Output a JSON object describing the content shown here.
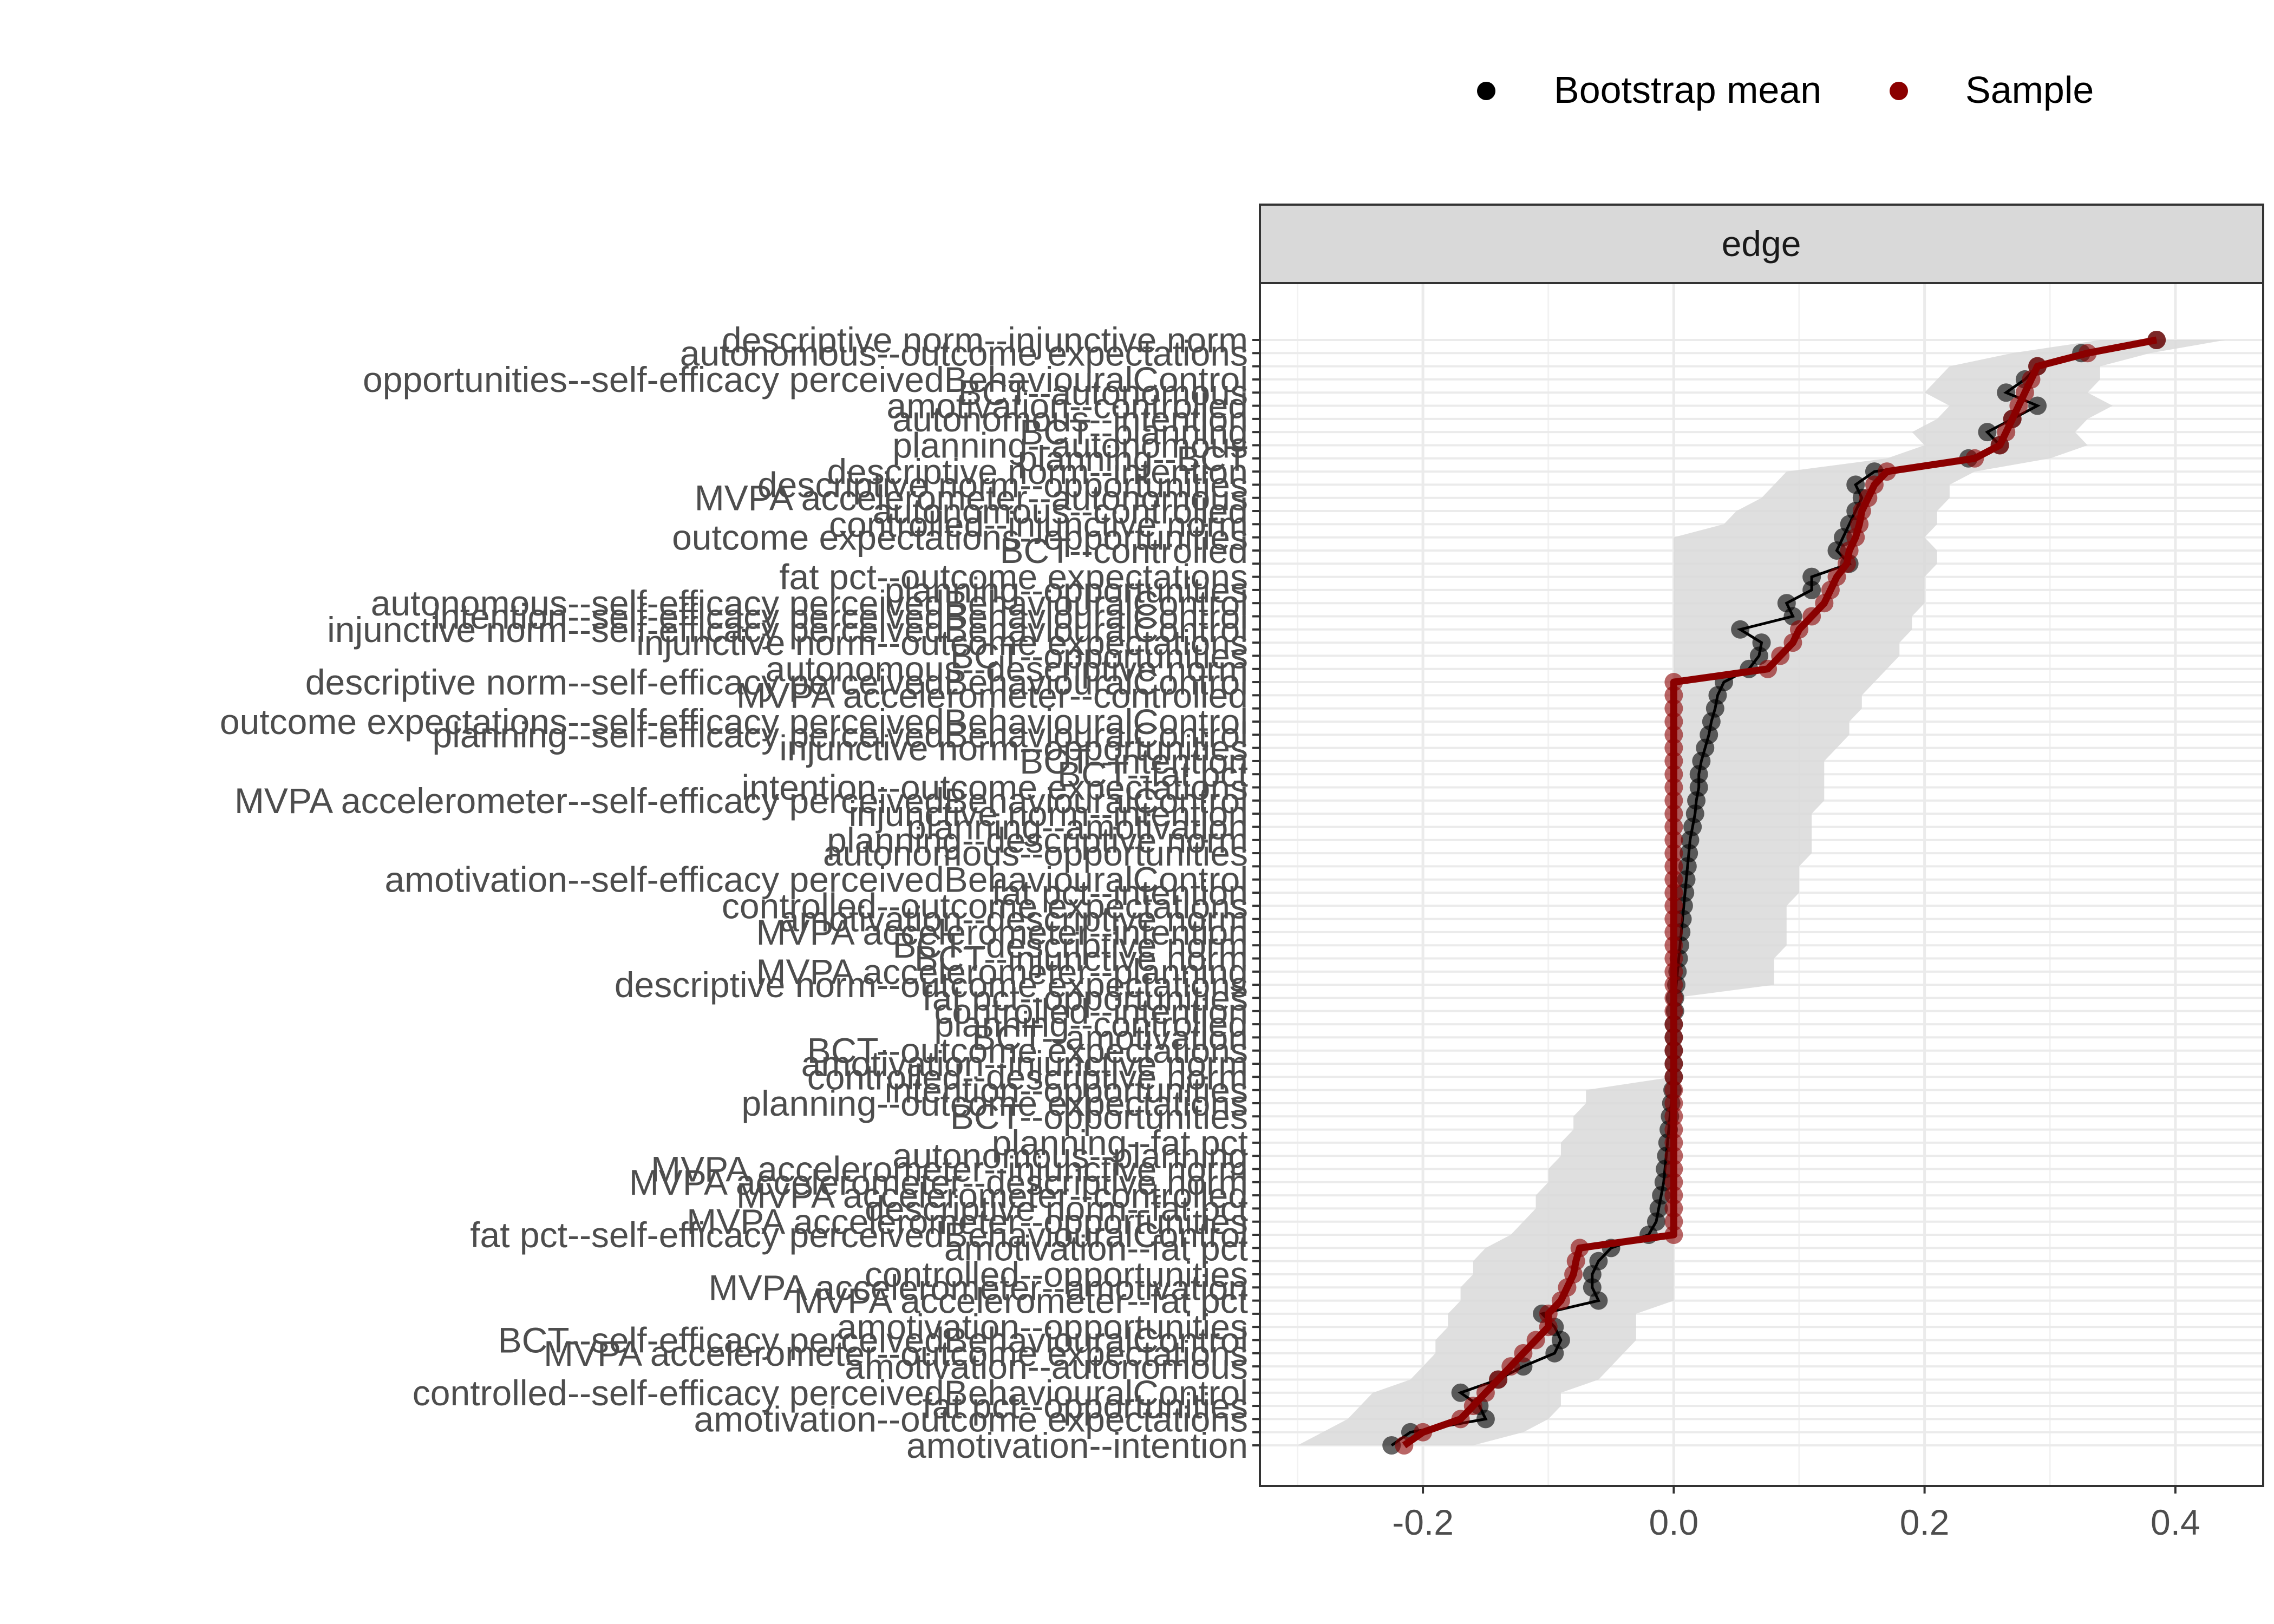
{
  "chart_data": {
    "type": "line",
    "facet_label": "edge",
    "xlim": [
      -0.33,
      0.47
    ],
    "x_ticks": [
      -0.2,
      0.0,
      0.2,
      0.4
    ],
    "x_tick_labels": [
      "-0.2",
      "0.0",
      "0.2",
      "0.4"
    ],
    "grid": true,
    "legend_position": "top-right",
    "legend": [
      {
        "label": "Bootstrap mean",
        "color": "#000000"
      },
      {
        "label": "Sample",
        "color": "#8b0000"
      }
    ],
    "colors": {
      "bootstrap": "#000000",
      "sample": "#8b0000",
      "ci_band": "#d9d9d9"
    },
    "edges": [
      {
        "label": "descriptive norm--injunctive norm",
        "sample": 0.385,
        "mean": 0.385,
        "lo": 0.34,
        "hi": 0.44
      },
      {
        "label": "autonomous--outcome expectations",
        "sample": 0.33,
        "mean": 0.325,
        "lo": 0.27,
        "hi": 0.38
      },
      {
        "label": "",
        "sample": 0.29,
        "mean": 0.29,
        "lo": 0.22,
        "hi": 0.34
      },
      {
        "label": "opportunities--self-efficacy perceivedBehaviouralControl",
        "sample": 0.285,
        "mean": 0.28,
        "lo": 0.21,
        "hi": 0.34
      },
      {
        "label": "BCT--autonomous",
        "sample": 0.28,
        "mean": 0.265,
        "lo": 0.2,
        "hi": 0.33
      },
      {
        "label": "amotivation--controlled",
        "sample": 0.275,
        "mean": 0.29,
        "lo": 0.22,
        "hi": 0.35
      },
      {
        "label": "autonomous--intention",
        "sample": 0.27,
        "mean": 0.27,
        "lo": 0.21,
        "hi": 0.33
      },
      {
        "label": "BCT--planning",
        "sample": 0.265,
        "mean": 0.25,
        "lo": 0.19,
        "hi": 0.32
      },
      {
        "label": "planning--autonomous",
        "sample": 0.26,
        "mean": 0.26,
        "lo": 0.2,
        "hi": 0.33
      },
      {
        "label": "planning--BCT",
        "sample": 0.24,
        "mean": 0.235,
        "lo": 0.17,
        "hi": 0.3
      },
      {
        "label": "descriptive norm--intention",
        "sample": 0.17,
        "mean": 0.16,
        "lo": 0.09,
        "hi": 0.24
      },
      {
        "label": "descriptive norm--opportunities",
        "sample": 0.16,
        "mean": 0.145,
        "lo": 0.08,
        "hi": 0.22
      },
      {
        "label": "MVPA accelerometer--autonomous",
        "sample": 0.155,
        "mean": 0.15,
        "lo": 0.07,
        "hi": 0.22
      },
      {
        "label": "autonomous--controlled",
        "sample": 0.15,
        "mean": 0.145,
        "lo": 0.05,
        "hi": 0.21
      },
      {
        "label": "controlled--injunctive norm",
        "sample": 0.148,
        "mean": 0.14,
        "lo": 0.04,
        "hi": 0.21
      },
      {
        "label": "outcome expectations--opportunities",
        "sample": 0.145,
        "mean": 0.135,
        "lo": 0.0,
        "hi": 0.2
      },
      {
        "label": "BCT--controlled",
        "sample": 0.14,
        "mean": 0.13,
        "lo": 0.0,
        "hi": 0.21
      },
      {
        "label": "",
        "sample": 0.138,
        "mean": 0.14,
        "lo": 0.0,
        "hi": 0.21
      },
      {
        "label": "fat pct--outcome expectations",
        "sample": 0.13,
        "mean": 0.11,
        "lo": 0.0,
        "hi": 0.2
      },
      {
        "label": "planning--opportunities",
        "sample": 0.125,
        "mean": 0.11,
        "lo": 0.0,
        "hi": 0.2
      },
      {
        "label": "autonomous--self-efficacy perceivedBehaviouralControl",
        "sample": 0.12,
        "mean": 0.09,
        "lo": 0.0,
        "hi": 0.2
      },
      {
        "label": "intention--self-efficacy perceivedBehaviouralControl",
        "sample": 0.11,
        "mean": 0.095,
        "lo": 0.0,
        "hi": 0.19
      },
      {
        "label": "injunctive norm--self-efficacy perceivedBehaviouralControl",
        "sample": 0.1,
        "mean": 0.053,
        "lo": 0.0,
        "hi": 0.19
      },
      {
        "label": "injunctive norm--outcome expectations",
        "sample": 0.095,
        "mean": 0.07,
        "lo": 0.0,
        "hi": 0.18
      },
      {
        "label": "BCT--opportunities",
        "sample": 0.085,
        "mean": 0.068,
        "lo": 0.0,
        "hi": 0.18
      },
      {
        "label": "autonomous--descriptive norm",
        "sample": 0.075,
        "mean": 0.06,
        "lo": 0.0,
        "hi": 0.17
      },
      {
        "label": "descriptive norm--self-efficacy perceivedBehaviouralControl",
        "sample": 0.0,
        "mean": 0.04,
        "lo": 0.0,
        "hi": 0.16
      },
      {
        "label": "MVPA accelerometer--controlled",
        "sample": 0.0,
        "mean": 0.035,
        "lo": 0.0,
        "hi": 0.15
      },
      {
        "label": "",
        "sample": 0.0,
        "mean": 0.033,
        "lo": 0.0,
        "hi": 0.15
      },
      {
        "label": "outcome expectations--self-efficacy perceivedBehaviouralControl",
        "sample": 0.0,
        "mean": 0.03,
        "lo": 0.0,
        "hi": 0.14
      },
      {
        "label": "planning--self-efficacy perceivedBehaviouralControl",
        "sample": 0.0,
        "mean": 0.028,
        "lo": 0.0,
        "hi": 0.14
      },
      {
        "label": "injunctive norm--opportunities",
        "sample": 0.0,
        "mean": 0.025,
        "lo": 0.0,
        "hi": 0.13
      },
      {
        "label": "BCT--intention",
        "sample": 0.0,
        "mean": 0.022,
        "lo": 0.0,
        "hi": 0.12
      },
      {
        "label": "BCT--fat pct",
        "sample": 0.0,
        "mean": 0.02,
        "lo": 0.0,
        "hi": 0.12
      },
      {
        "label": "intention--outcome expectations",
        "sample": 0.0,
        "mean": 0.02,
        "lo": 0.0,
        "hi": 0.12
      },
      {
        "label": "MVPA accelerometer--self-efficacy perceivedBehaviouralControl",
        "sample": 0.0,
        "mean": 0.018,
        "lo": 0.0,
        "hi": 0.12
      },
      {
        "label": "injunctive norm--intention",
        "sample": 0.0,
        "mean": 0.017,
        "lo": 0.0,
        "hi": 0.11
      },
      {
        "label": "planning--amotivation",
        "sample": 0.0,
        "mean": 0.015,
        "lo": 0.0,
        "hi": 0.11
      },
      {
        "label": "planning--descriptive norm",
        "sample": 0.0,
        "mean": 0.013,
        "lo": 0.0,
        "hi": 0.11
      },
      {
        "label": "autonomous--opportunities",
        "sample": 0.0,
        "mean": 0.012,
        "lo": 0.0,
        "hi": 0.11
      },
      {
        "label": "",
        "sample": 0.0,
        "mean": 0.011,
        "lo": 0.0,
        "hi": 0.1
      },
      {
        "label": "amotivation--self-efficacy perceivedBehaviouralControl",
        "sample": 0.0,
        "mean": 0.01,
        "lo": 0.0,
        "hi": 0.1
      },
      {
        "label": "fat pct--intention",
        "sample": 0.0,
        "mean": 0.009,
        "lo": 0.0,
        "hi": 0.1
      },
      {
        "label": "controlled--outcome expectations",
        "sample": 0.0,
        "mean": 0.008,
        "lo": 0.0,
        "hi": 0.09
      },
      {
        "label": "amotivation--descriptive norm",
        "sample": 0.0,
        "mean": 0.007,
        "lo": 0.0,
        "hi": 0.09
      },
      {
        "label": "MVPA accelerometer--intention",
        "sample": 0.0,
        "mean": 0.006,
        "lo": 0.0,
        "hi": 0.09
      },
      {
        "label": "BCT--descriptive norm",
        "sample": 0.0,
        "mean": 0.005,
        "lo": 0.0,
        "hi": 0.09
      },
      {
        "label": "BCT--injunctive norm",
        "sample": 0.0,
        "mean": 0.004,
        "lo": 0.0,
        "hi": 0.08
      },
      {
        "label": "MVPA accelerometer--planning",
        "sample": 0.0,
        "mean": 0.003,
        "lo": 0.0,
        "hi": 0.08
      },
      {
        "label": "descriptive norm--outcome expectations",
        "sample": 0.0,
        "mean": 0.002,
        "lo": 0.0,
        "hi": 0.08
      },
      {
        "label": "fat pct--opportunities",
        "sample": 0.0,
        "mean": 0.001,
        "lo": 0.0,
        "hi": 0.0
      },
      {
        "label": "controlled--intention",
        "sample": 0.0,
        "mean": 0.001,
        "lo": 0.0,
        "hi": 0.0
      },
      {
        "label": "planning--controlled",
        "sample": 0.0,
        "mean": 0.0,
        "lo": 0.0,
        "hi": 0.0
      },
      {
        "label": "BCT--amotivation",
        "sample": 0.0,
        "mean": 0.0,
        "lo": 0.0,
        "hi": 0.0
      },
      {
        "label": "BCT--outcome expectations",
        "sample": 0.0,
        "mean": 0.0,
        "lo": 0.0,
        "hi": 0.0
      },
      {
        "label": "amotivation--injunctive norm",
        "sample": 0.0,
        "mean": 0.0,
        "lo": 0.0,
        "hi": 0.0
      },
      {
        "label": "controlled--descriptive norm",
        "sample": 0.0,
        "mean": 0.0,
        "lo": 0.0,
        "hi": 0.0
      },
      {
        "label": "intention--opportunities",
        "sample": 0.0,
        "mean": -0.001,
        "lo": -0.07,
        "hi": 0.0
      },
      {
        "label": "planning--outcome expectations",
        "sample": 0.0,
        "mean": -0.002,
        "lo": -0.07,
        "hi": 0.0
      },
      {
        "label": "BCT--opportunities",
        "sample": 0.0,
        "mean": -0.003,
        "lo": -0.08,
        "hi": 0.0
      },
      {
        "label": "",
        "sample": 0.0,
        "mean": -0.004,
        "lo": -0.08,
        "hi": 0.0
      },
      {
        "label": "planning--fat pct",
        "sample": 0.0,
        "mean": -0.005,
        "lo": -0.09,
        "hi": 0.0
      },
      {
        "label": "autonomous--planning",
        "sample": 0.0,
        "mean": -0.006,
        "lo": -0.09,
        "hi": 0.0
      },
      {
        "label": "MVPA accelerometer--injunctive norm",
        "sample": 0.0,
        "mean": -0.007,
        "lo": -0.1,
        "hi": 0.0
      },
      {
        "label": "MVPA accelerometer--descriptive norm",
        "sample": 0.0,
        "mean": -0.008,
        "lo": -0.1,
        "hi": 0.0
      },
      {
        "label": "MVPA accelerometer--controlled",
        "sample": 0.0,
        "mean": -0.01,
        "lo": -0.11,
        "hi": 0.0
      },
      {
        "label": "descriptive norm--fat pct",
        "sample": 0.0,
        "mean": -0.012,
        "lo": -0.11,
        "hi": 0.0
      },
      {
        "label": "MVPA accelerometer--opportunities",
        "sample": 0.0,
        "mean": -0.014,
        "lo": -0.12,
        "hi": 0.0
      },
      {
        "label": "fat pct--self-efficacy perceivedBehaviouralControl",
        "sample": 0.0,
        "mean": -0.02,
        "lo": -0.13,
        "hi": 0.0
      },
      {
        "label": "amotivation--fat pct",
        "sample": -0.075,
        "mean": -0.05,
        "lo": -0.15,
        "hi": 0.0
      },
      {
        "label": "",
        "sample": -0.078,
        "mean": -0.06,
        "lo": -0.16,
        "hi": 0.0
      },
      {
        "label": "controlled--opportunities",
        "sample": -0.08,
        "mean": -0.065,
        "lo": -0.16,
        "hi": 0.0
      },
      {
        "label": "MVPA accelerometer--amotivation",
        "sample": -0.085,
        "mean": -0.065,
        "lo": -0.17,
        "hi": 0.0
      },
      {
        "label": "MVPA accelerometer--fat pct",
        "sample": -0.09,
        "mean": -0.06,
        "lo": -0.17,
        "hi": 0.0
      },
      {
        "label": "",
        "sample": -0.1,
        "mean": -0.105,
        "lo": -0.18,
        "hi": -0.03
      },
      {
        "label": "amotivation--opportunities",
        "sample": -0.1,
        "mean": -0.095,
        "lo": -0.18,
        "hi": -0.03
      },
      {
        "label": "BCT--self-efficacy perceivedBehaviouralControl",
        "sample": -0.11,
        "mean": -0.09,
        "lo": -0.19,
        "hi": -0.03
      },
      {
        "label": "MVPA accelerometer--outcome expectations",
        "sample": -0.12,
        "mean": -0.095,
        "lo": -0.19,
        "hi": -0.04
      },
      {
        "label": "amotivation--autonomous",
        "sample": -0.13,
        "mean": -0.12,
        "lo": -0.2,
        "hi": -0.05
      },
      {
        "label": "",
        "sample": -0.14,
        "mean": -0.14,
        "lo": -0.21,
        "hi": -0.06
      },
      {
        "label": "controlled--self-efficacy perceivedBehaviouralControl",
        "sample": -0.15,
        "mean": -0.17,
        "lo": -0.24,
        "hi": -0.09
      },
      {
        "label": "fat pct--opportunities",
        "sample": -0.16,
        "mean": -0.155,
        "lo": -0.25,
        "hi": -0.09
      },
      {
        "label": "amotivation--outcome expectations",
        "sample": -0.17,
        "mean": -0.15,
        "lo": -0.26,
        "hi": -0.1
      },
      {
        "label": "",
        "sample": -0.2,
        "mean": -0.21,
        "lo": -0.28,
        "hi": -0.12
      },
      {
        "label": "amotivation--intention",
        "sample": -0.215,
        "mean": -0.225,
        "lo": -0.3,
        "hi": -0.16
      }
    ]
  }
}
